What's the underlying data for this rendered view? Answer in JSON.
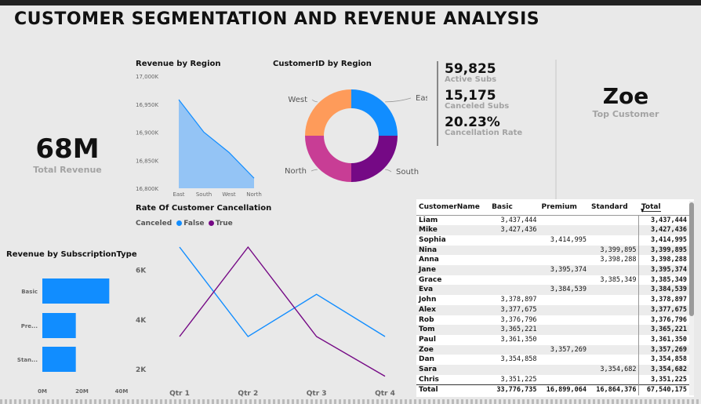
{
  "header": {
    "title": "CUSTOMER SEGMENTATION AND REVENUE ANALYSIS"
  },
  "kpi_total_revenue": {
    "value": "68M",
    "label": "Total Revenue"
  },
  "kpi_subs": [
    {
      "value": "59,825",
      "label": "Active Subs"
    },
    {
      "value": "15,175",
      "label": "Canceled Subs"
    },
    {
      "value": "20.23%",
      "label": "Cancellation Rate"
    }
  ],
  "kpi_top_customer": {
    "value": "Zoe",
    "label": "Top Customer"
  },
  "colors": {
    "blue": "#118dff",
    "purple": "#750985",
    "orange": "#fe9b5a",
    "magenta": "#c83d95",
    "area": "#94c4f5"
  },
  "chart_data": [
    {
      "type": "area",
      "title": "Revenue by Region",
      "categories": [
        "East",
        "South",
        "West",
        "North"
      ],
      "values": [
        16958,
        16900,
        16864,
        16818
      ],
      "ylim": [
        16800,
        17000
      ],
      "yticks": [
        "17,000K",
        "16,950K",
        "16,900K",
        "16,850K",
        "16,800K"
      ]
    },
    {
      "type": "pie",
      "title": "CustomerID by Region",
      "categories": [
        "East",
        "South",
        "North",
        "West"
      ],
      "values": [
        25,
        25,
        25,
        25
      ]
    },
    {
      "type": "line",
      "title": "Rate Of Customer Cancellation",
      "legend_title": "Canceled",
      "categories": [
        "Qtr 1",
        "Qtr 2",
        "Qtr 3",
        "Qtr 4"
      ],
      "series": [
        {
          "name": "False",
          "values": [
            6900,
            3300,
            5000,
            3300
          ]
        },
        {
          "name": "True",
          "values": [
            3300,
            6900,
            3300,
            1700
          ]
        }
      ],
      "yticks": [
        "6K",
        "4K",
        "2K"
      ],
      "ylim": [
        1500,
        7500
      ]
    },
    {
      "type": "bar",
      "title": "Revenue by SubscriptionType",
      "categories": [
        "Basic",
        "Pre...",
        "Stan..."
      ],
      "values": [
        33.8,
        16.9,
        16.9
      ],
      "xticks": [
        "0M",
        "20M",
        "40M"
      ],
      "xlim": [
        0,
        40
      ]
    }
  ],
  "matrix": {
    "headers": [
      "CustomerName",
      "Basic",
      "Premium",
      "Standard",
      "Total"
    ],
    "rows": [
      [
        "Liam",
        "3,437,444",
        "",
        "",
        "3,437,444"
      ],
      [
        "Mike",
        "3,427,436",
        "",
        "",
        "3,427,436"
      ],
      [
        "Sophia",
        "",
        "3,414,995",
        "",
        "3,414,995"
      ],
      [
        "Nina",
        "",
        "",
        "3,399,895",
        "3,399,895"
      ],
      [
        "Anna",
        "",
        "",
        "3,398,288",
        "3,398,288"
      ],
      [
        "Jane",
        "",
        "3,395,374",
        "",
        "3,395,374"
      ],
      [
        "Grace",
        "",
        "",
        "3,385,349",
        "3,385,349"
      ],
      [
        "Eva",
        "",
        "3,384,539",
        "",
        "3,384,539"
      ],
      [
        "John",
        "3,378,897",
        "",
        "",
        "3,378,897"
      ],
      [
        "Alex",
        "3,377,675",
        "",
        "",
        "3,377,675"
      ],
      [
        "Rob",
        "3,376,796",
        "",
        "",
        "3,376,796"
      ],
      [
        "Tom",
        "3,365,221",
        "",
        "",
        "3,365,221"
      ],
      [
        "Paul",
        "3,361,350",
        "",
        "",
        "3,361,350"
      ],
      [
        "Zoe",
        "",
        "3,357,269",
        "",
        "3,357,269"
      ],
      [
        "Dan",
        "3,354,858",
        "",
        "",
        "3,354,858"
      ],
      [
        "Sara",
        "",
        "",
        "3,354,682",
        "3,354,682"
      ],
      [
        "Chris",
        "3,351,225",
        "",
        "",
        "3,351,225"
      ]
    ],
    "total": [
      "Total",
      "33,776,735",
      "16,899,064",
      "16,864,376",
      "67,540,175"
    ]
  }
}
